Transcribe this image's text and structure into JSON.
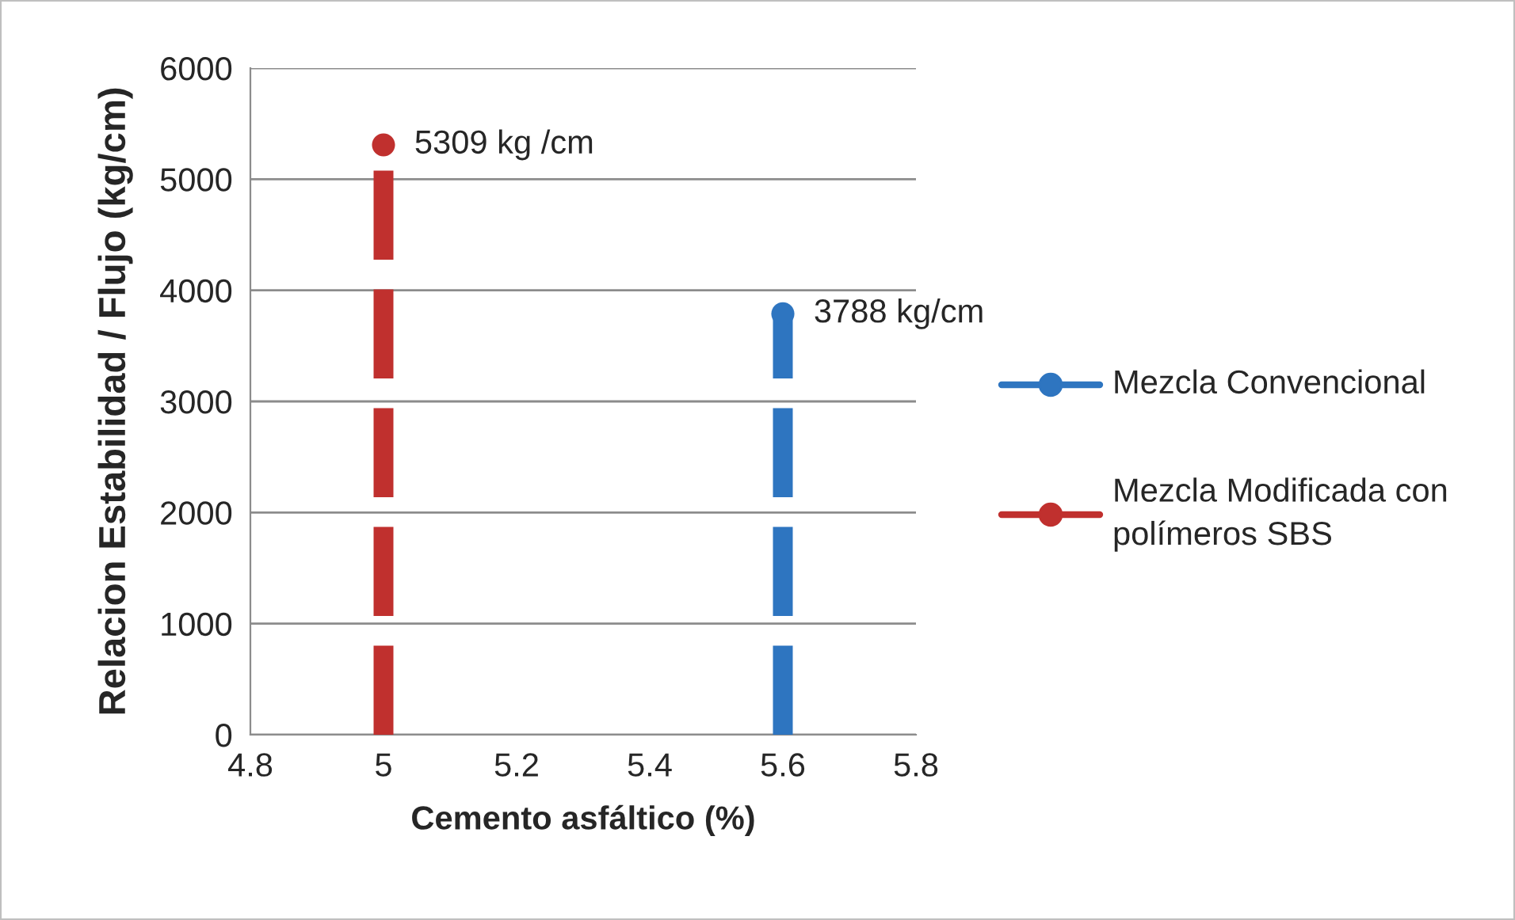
{
  "chart_data": {
    "type": "scatter",
    "xlabel": "Cemento asfáltico (%)",
    "ylabel": "Relacion Estabilidad / Flujo (kg/cm)",
    "series": [
      {
        "name": "Mezcla Convencional",
        "color": "#2e75c0",
        "x": [
          5.6
        ],
        "values": [
          3788
        ],
        "errors": [
          [
            0,
            3788
          ]
        ]
      },
      {
        "name": "Mezcla Modificada con polímeros SBS",
        "color": "#c0302e",
        "x": [
          5
        ],
        "values": [
          5309
        ],
        "errors": [
          [
            0,
            5309
          ]
        ]
      }
    ],
    "annotations": [
      {
        "text": "5309 kg /cm",
        "x": 5,
        "y": 5309
      },
      {
        "text": "3788 kg/cm",
        "x": 5.6,
        "y": 3788
      }
    ],
    "xlim": [
      4.8,
      5.8
    ],
    "xticks": [
      4.8,
      5,
      5.2,
      5.4,
      5.6,
      5.8
    ],
    "ylim": [
      0,
      6000
    ],
    "yticks": [
      0,
      1000,
      2000,
      3000,
      4000,
      5000,
      6000
    ],
    "grid": "y",
    "legend": "right",
    "marker": "circle",
    "line_style": "dashed"
  }
}
